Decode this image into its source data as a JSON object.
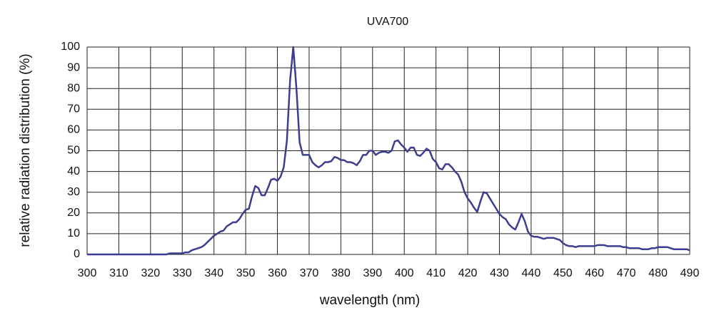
{
  "chart_data": {
    "type": "line",
    "title": "UVA700",
    "xlabel": "wavelength (nm)",
    "ylabel": "relative radiation distribution (%)",
    "x": [
      300,
      310,
      320,
      325,
      326,
      327,
      328,
      329,
      330,
      331,
      332,
      333,
      334,
      335,
      336,
      337,
      338,
      339,
      340,
      341,
      342,
      343,
      344,
      345,
      346,
      347,
      348,
      349,
      350,
      351,
      352,
      353,
      354,
      355,
      356,
      357,
      358,
      359,
      360,
      361,
      362,
      363,
      364,
      365,
      366,
      367,
      368,
      369,
      370,
      371,
      372,
      373,
      374,
      375,
      376,
      377,
      378,
      379,
      380,
      381,
      382,
      383,
      384,
      385,
      386,
      387,
      388,
      389,
      390,
      391,
      392,
      393,
      394,
      395,
      396,
      397,
      398,
      399,
      400,
      401,
      402,
      403,
      404,
      405,
      406,
      407,
      408,
      409,
      410,
      411,
      412,
      413,
      414,
      415,
      416,
      417,
      418,
      419,
      420,
      421,
      422,
      423,
      424,
      425,
      426,
      427,
      428,
      429,
      430,
      431,
      432,
      433,
      434,
      435,
      436,
      437,
      438,
      439,
      440,
      441,
      442,
      443,
      444,
      445,
      446,
      447,
      448,
      449,
      450,
      451,
      452,
      453,
      454,
      455,
      456,
      457,
      458,
      459,
      460,
      461,
      462,
      463,
      464,
      465,
      466,
      467,
      468,
      469,
      470,
      471,
      472,
      473,
      474,
      475,
      476,
      477,
      478,
      479,
      480,
      481,
      482,
      483,
      484,
      485,
      486,
      487,
      488,
      489,
      490
    ],
    "series": [
      {
        "name": "UVA700",
        "color": "#3d3d8f",
        "values": [
          0,
          0,
          0,
          0,
          0.5,
          0.5,
          0.5,
          0.5,
          0.5,
          1,
          1,
          2,
          2.5,
          3,
          3.5,
          4.5,
          6,
          7.5,
          9,
          10,
          11,
          11.5,
          13.5,
          14.5,
          15.5,
          15.5,
          17,
          19.5,
          21.5,
          22,
          28,
          33,
          32,
          28.5,
          28.5,
          32,
          36,
          36.5,
          35.5,
          37.5,
          42,
          55,
          84,
          100,
          80,
          54,
          48,
          48,
          48,
          44.5,
          43,
          42,
          43,
          44.5,
          44.5,
          45,
          47,
          46.5,
          45.5,
          45.5,
          44.5,
          44.5,
          44,
          43,
          45,
          48,
          48,
          50,
          50,
          48,
          49,
          49.5,
          49.5,
          49,
          50,
          54.5,
          55,
          53,
          51.5,
          49.5,
          51.5,
          51.5,
          48,
          47.5,
          49,
          51,
          50,
          46,
          44.5,
          41.5,
          41,
          43.5,
          43.5,
          42,
          40,
          38.5,
          35,
          30,
          27,
          25,
          22.5,
          20.5,
          25.5,
          30,
          29.5,
          27,
          24.5,
          22,
          19.5,
          18,
          17,
          14.5,
          13,
          12,
          15.5,
          19.5,
          16,
          11,
          9,
          8.5,
          8.5,
          8,
          7.5,
          8,
          8,
          8,
          7.5,
          7,
          5.5,
          4.5,
          4,
          4,
          3.5,
          4,
          4,
          4,
          4,
          4,
          4,
          4.5,
          4.5,
          4.5,
          4,
          4,
          4,
          4,
          4,
          3.5,
          3.5,
          3,
          3,
          3,
          3,
          2.5,
          2.5,
          2.5,
          3,
          3,
          3.5,
          3.5,
          3.5,
          3.5,
          3,
          2.5,
          2.5,
          2.5,
          2.5,
          2.5,
          2
        ]
      }
    ],
    "xlim": [
      300,
      490
    ],
    "xticks": [
      300,
      310,
      320,
      330,
      340,
      350,
      360,
      370,
      380,
      390,
      400,
      410,
      420,
      430,
      440,
      450,
      460,
      470,
      480,
      490
    ],
    "ylim": [
      0,
      100
    ],
    "yticks": [
      0,
      10,
      20,
      30,
      40,
      50,
      60,
      70,
      80,
      90,
      100
    ],
    "grid": true
  }
}
